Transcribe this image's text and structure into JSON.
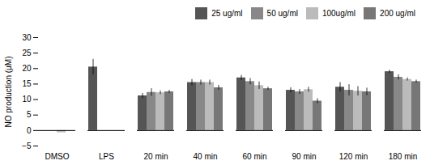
{
  "chart_data": {
    "type": "bar",
    "categories": [
      "DMSO",
      "LPS",
      "20 min",
      "40 min",
      "60 min",
      "90 min",
      "120 min",
      "180 min"
    ],
    "series": [
      {
        "name": "25 ug/ml",
        "color": "#555555",
        "values": [
          0,
          20.5,
          11.2,
          15.5,
          17.0,
          13.0,
          14.0,
          19.0
        ],
        "errors": [
          0,
          2.5,
          0.8,
          1.0,
          0.8,
          0.8,
          1.5,
          0.5
        ]
      },
      {
        "name": "50 ug/ml",
        "color": "#888888",
        "values": [
          0,
          0,
          12.3,
          15.5,
          15.8,
          12.5,
          13.0,
          17.2
        ],
        "errors": [
          0,
          0,
          1.2,
          0.8,
          1.0,
          0.8,
          1.8,
          0.8
        ]
      },
      {
        "name": "100ug/ml",
        "color": "#bbbbbb",
        "values": [
          -0.7,
          0,
          12.2,
          15.5,
          14.5,
          13.2,
          12.7,
          16.5
        ],
        "errors": [
          0,
          0,
          0.6,
          0.8,
          1.2,
          0.8,
          1.5,
          0.5
        ]
      },
      {
        "name": "200 ug/ml",
        "color": "#777777",
        "values": [
          0,
          0,
          12.5,
          13.8,
          13.5,
          9.5,
          12.5,
          15.8
        ],
        "errors": [
          0,
          0,
          0.5,
          0.8,
          0.5,
          0.8,
          1.2,
          0.5
        ]
      }
    ],
    "ylabel": "NO production (μM)",
    "ylim": [
      -5,
      30
    ],
    "yticks": [
      -5,
      0,
      5,
      10,
      15,
      20,
      25,
      30
    ],
    "grid": false,
    "legend": "upper right"
  }
}
